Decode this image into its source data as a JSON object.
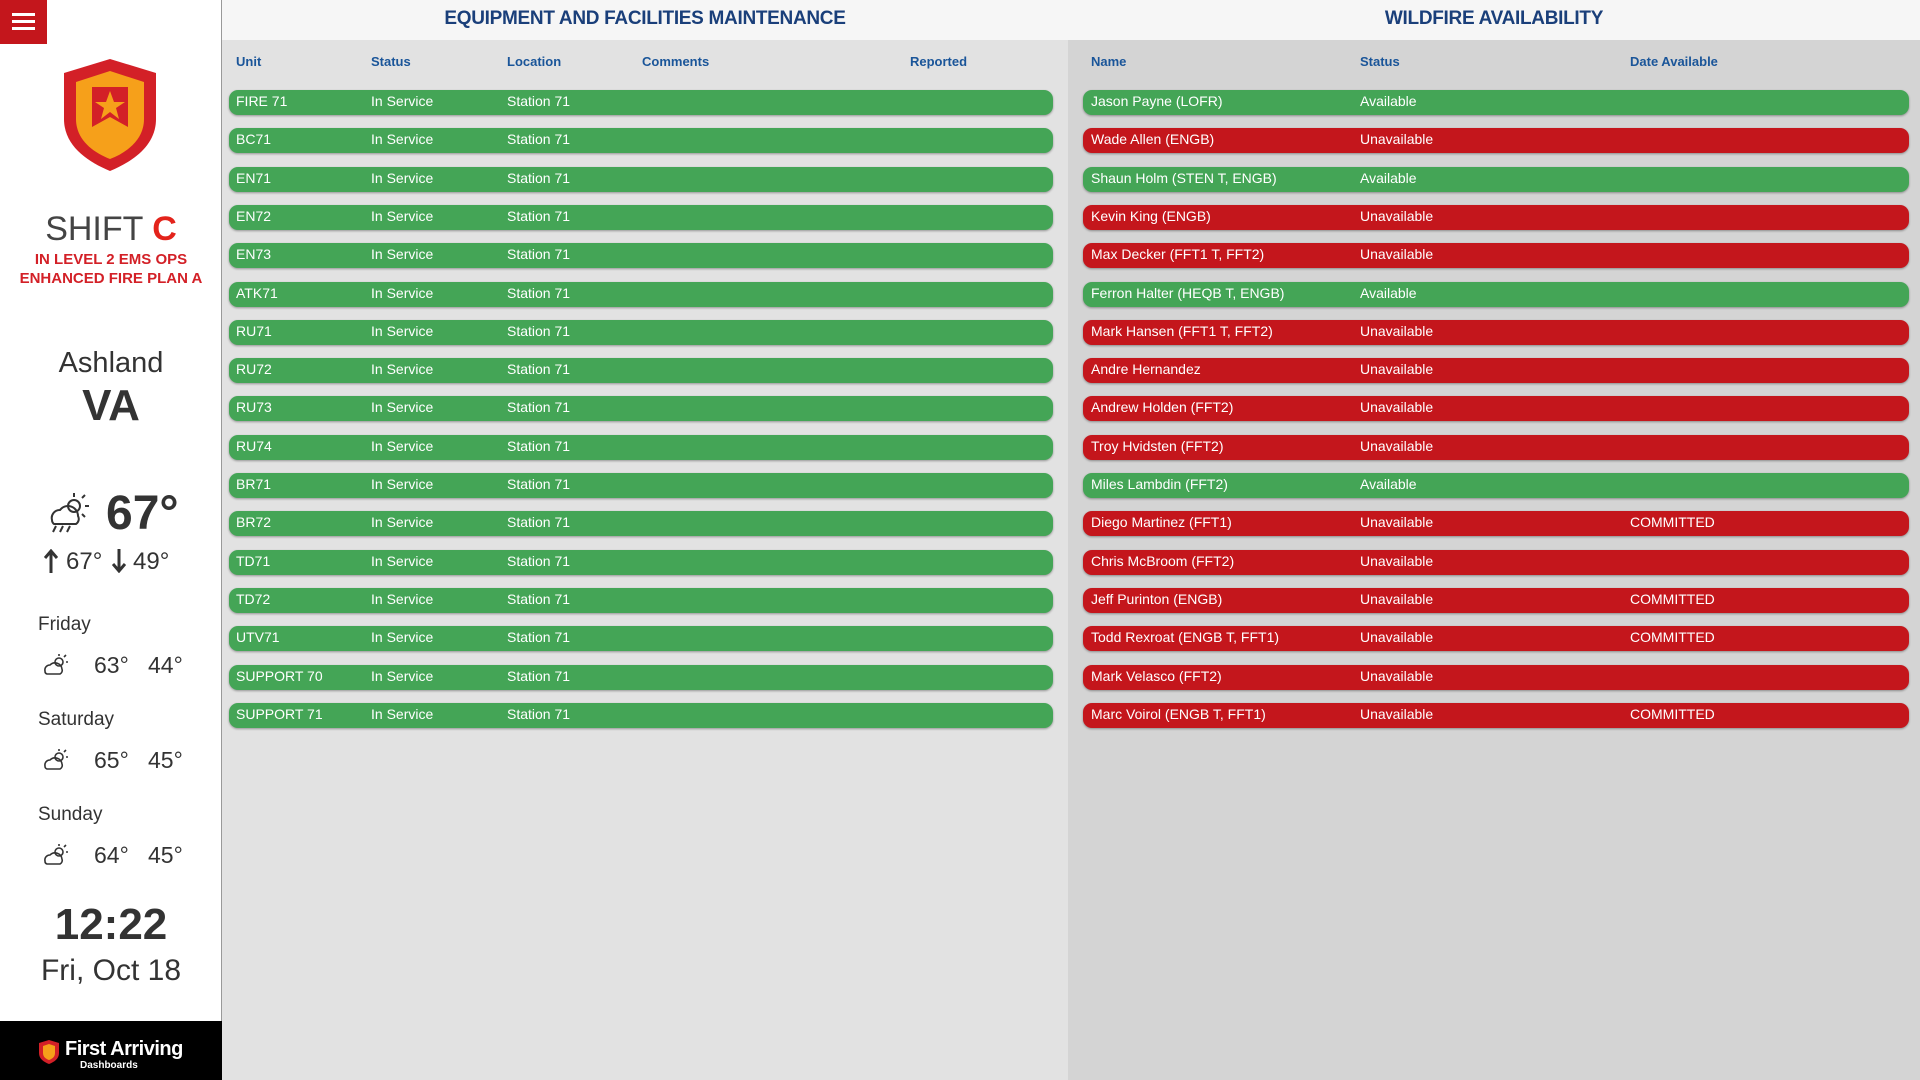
{
  "sidebar": {
    "shift_label": "SHIFT",
    "shift": "C",
    "status_lines": [
      "IN LEVEL 2 EMS OPS",
      "ENHANCED FIRE PLAN A"
    ],
    "city": "Ashland",
    "state": "VA",
    "current_temp": "67°",
    "high": "67°",
    "low": "49°",
    "forecast": [
      {
        "day": "Friday",
        "high": "63°",
        "low": "44°"
      },
      {
        "day": "Saturday",
        "high": "65°",
        "low": "45°"
      },
      {
        "day": "Sunday",
        "high": "64°",
        "low": "45°"
      }
    ],
    "time": "12:22",
    "date": "Fri, Oct 18",
    "brand": "First Arriving",
    "brand_sub": "Dashboards"
  },
  "equipment": {
    "title": "EQUIPMENT AND FACILITIES MAINTENANCE",
    "columns": [
      "Unit",
      "Status",
      "Location",
      "Comments",
      "Reported"
    ],
    "rows": [
      {
        "cells": [
          "FIRE 71",
          "In Service",
          "Station 71"
        ],
        "color": "#44a556"
      },
      {
        "cells": [
          "BC71",
          "In Service",
          "Station 71"
        ],
        "color": "#44a556"
      },
      {
        "cells": [
          "EN71",
          "In Service",
          "Station 71"
        ],
        "color": "#44a556"
      },
      {
        "cells": [
          "EN72",
          "In Service",
          "Station 71"
        ],
        "color": "#44a556"
      },
      {
        "cells": [
          "EN73",
          "In Service",
          "Station 71"
        ],
        "color": "#44a556"
      },
      {
        "cells": [
          "ATK71",
          "In Service",
          "Station 71"
        ],
        "color": "#44a556"
      },
      {
        "cells": [
          "RU71",
          "In Service",
          "Station 71"
        ],
        "color": "#44a556"
      },
      {
        "cells": [
          "RU72",
          "In Service",
          "Station 71"
        ],
        "color": "#44a556"
      },
      {
        "cells": [
          "RU73",
          "In Service",
          "Station 71"
        ],
        "color": "#44a556"
      },
      {
        "cells": [
          "RU74",
          "In Service",
          "Station 71"
        ],
        "color": "#44a556"
      },
      {
        "cells": [
          "BR71",
          "In Service",
          "Station 71"
        ],
        "color": "#44a556"
      },
      {
        "cells": [
          "BR72",
          "In Service",
          "Station 71"
        ],
        "color": "#44a556"
      },
      {
        "cells": [
          "TD71",
          "In Service",
          "Station 71"
        ],
        "color": "#44a556"
      },
      {
        "cells": [
          "TD72",
          "In Service",
          "Station 71"
        ],
        "color": "#44a556"
      },
      {
        "cells": [
          "UTV71",
          "In Service",
          "Station 71"
        ],
        "color": "#44a556"
      },
      {
        "cells": [
          "SUPPORT 70",
          "In Service",
          "Station 71"
        ],
        "color": "#44a556"
      },
      {
        "cells": [
          "SUPPORT 71",
          "In Service",
          "Station 71"
        ],
        "color": "#44a556"
      }
    ]
  },
  "wildfire": {
    "title": "WILDFIRE AVAILABILITY",
    "columns": [
      "Name",
      "Status",
      "Date Available"
    ],
    "rows": [
      {
        "cells": [
          "Jason Payne (LOFR)",
          "Available"
        ],
        "color": "#44a556"
      },
      {
        "cells": [
          "Wade Allen (ENGB)",
          "Unavailable"
        ],
        "color": "#c4161c"
      },
      {
        "cells": [
          "Shaun Holm (STEN T, ENGB)",
          "Available"
        ],
        "color": "#44a556"
      },
      {
        "cells": [
          "Kevin King (ENGB)",
          "Unavailable"
        ],
        "color": "#c4161c"
      },
      {
        "cells": [
          "Max Decker (FFT1 T, FFT2)",
          "Unavailable"
        ],
        "color": "#c4161c"
      },
      {
        "cells": [
          "Ferron Halter (HEQB T, ENGB)",
          "Available"
        ],
        "color": "#44a556"
      },
      {
        "cells": [
          "Mark Hansen (FFT1 T, FFT2)",
          "Unavailable"
        ],
        "color": "#c4161c"
      },
      {
        "cells": [
          "Andre Hernandez",
          "Unavailable"
        ],
        "color": "#c4161c"
      },
      {
        "cells": [
          "Andrew Holden (FFT2)",
          "Unavailable"
        ],
        "color": "#c4161c"
      },
      {
        "cells": [
          "Troy Hvidsten (FFT2)",
          "Unavailable"
        ],
        "color": "#c4161c"
      },
      {
        "cells": [
          "Miles Lambdin (FFT2)",
          "Available"
        ],
        "color": "#44a556"
      },
      {
        "cells": [
          "Diego Martinez (FFT1)",
          "Unavailable",
          "COMMITTED"
        ],
        "color": "#c4161c"
      },
      {
        "cells": [
          "Chris McBroom (FFT2)",
          "Unavailable"
        ],
        "color": "#c4161c"
      },
      {
        "cells": [
          "Jeff Purinton (ENGB)",
          "Unavailable",
          "COMMITTED"
        ],
        "color": "#c4161c"
      },
      {
        "cells": [
          "Todd Rexroat (ENGB T, FFT1)",
          "Unavailable",
          "COMMITTED"
        ],
        "color": "#c4161c"
      },
      {
        "cells": [
          "Mark Velasco (FFT2)",
          "Unavailable"
        ],
        "color": "#c4161c"
      },
      {
        "cells": [
          "Marc Voirol (ENGB T, FFT1)",
          "Unavailable",
          "COMMITTED"
        ],
        "color": "#c4161c"
      }
    ]
  }
}
